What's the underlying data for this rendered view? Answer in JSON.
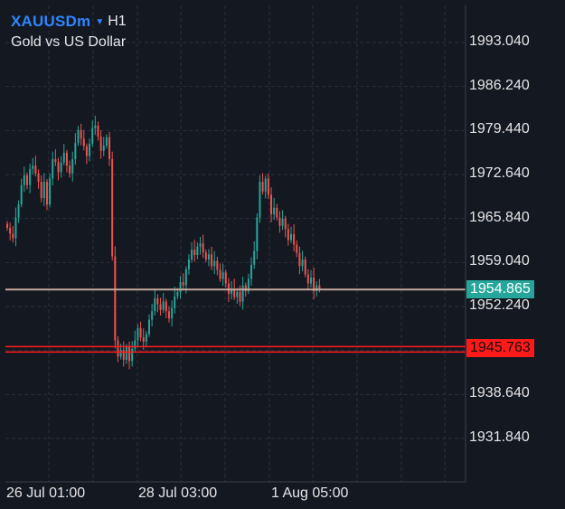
{
  "header": {
    "symbol": "XAUUSDm",
    "timeframe": "H1",
    "description": "Gold vs US Dollar"
  },
  "price_axis": {
    "labels": [
      "1993.040",
      "1986.240",
      "1979.440",
      "1972.640",
      "1965.840",
      "1959.040",
      "1952.240",
      "1938.640",
      "1931.840"
    ]
  },
  "time_axis": {
    "labels": [
      "26 Jul 01:00",
      "28 Jul 03:00",
      "1 Aug 05:00"
    ]
  },
  "current_price": {
    "value": "1954.865",
    "color": "#26a69a"
  },
  "level_line": {
    "value": "1945.763",
    "color": "#ff1a1a"
  },
  "colors": {
    "background": "#141821",
    "grid": "#2a2f3d",
    "bull": "#26a69a",
    "bear": "#ef5350",
    "accent": "#2f86ff"
  },
  "chart_data": {
    "type": "candlestick",
    "ylim": [
      1926,
      1999
    ],
    "y_ticks": [
      1993.04,
      1986.24,
      1979.44,
      1972.64,
      1965.84,
      1959.04,
      1952.24,
      1945.44,
      1938.64,
      1931.84
    ],
    "x_labels": [
      "26 Jul 01:00",
      "28 Jul 03:00",
      "1 Aug 05:00"
    ],
    "close_path": [
      1964.4,
      1963.5,
      1962.8,
      1966,
      1968,
      1971,
      1972.5,
      1971,
      1973.5,
      1974,
      1972.8,
      1971.5,
      1969,
      1971.5,
      1968,
      1972,
      1975,
      1974.6,
      1973,
      1974.5,
      1976,
      1974,
      1972.8,
      1975,
      1977.5,
      1979.5,
      1978.2,
      1977,
      1975.5,
      1977.4,
      1979.8,
      1980.2,
      1978.5,
      1976.3,
      1977.1,
      1978.4,
      1975,
      1960,
      1947,
      1944.5,
      1945.5,
      1944,
      1946,
      1943.8,
      1945.7,
      1947,
      1948.9,
      1947.5,
      1946.8,
      1948,
      1950.2,
      1951.5,
      1953.5,
      1952.6,
      1951.7,
      1953,
      1951.5,
      1950.4,
      1952,
      1953.8,
      1954.5,
      1956,
      1955.5,
      1958,
      1959.5,
      1961,
      1960.2,
      1961.5,
      1962,
      1960.6,
      1959.5,
      1960.3,
      1958.5,
      1959.3,
      1957.9,
      1956.5,
      1957.5,
      1955.8,
      1954.2,
      1955,
      1953.7,
      1954.5,
      1953,
      1955.5,
      1954.6,
      1956.5,
      1958.7,
      1960.8,
      1966,
      1971.5,
      1970,
      1972,
      1969.5,
      1966.5,
      1967.5,
      1966,
      1964.7,
      1965.8,
      1964.2,
      1962.5,
      1963.4,
      1961.8,
      1960.5,
      1958.5,
      1959.5,
      1957.2,
      1955.8,
      1956.7,
      1954.6,
      1955.5,
      1954.865
    ]
  }
}
